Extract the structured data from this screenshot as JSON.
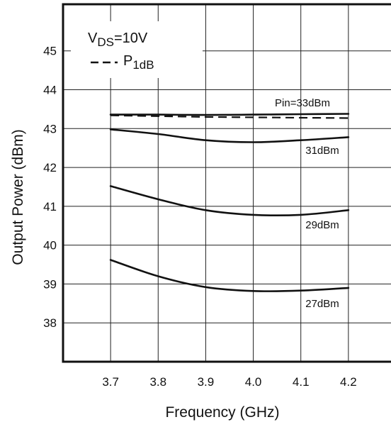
{
  "chart_data": {
    "type": "line",
    "xlabel": "Frequency (GHz)",
    "ylabel": "Output Power (dBm)",
    "xlim": [
      3.6,
      4.3
    ],
    "ylim": [
      37.0,
      46.2
    ],
    "x_ticks": [
      "3.7",
      "3.8",
      "3.9",
      "4.0",
      "4.1",
      "4.2"
    ],
    "y_ticks": [
      "38",
      "39",
      "40",
      "41",
      "42",
      "43",
      "44",
      "45"
    ],
    "grid": true,
    "legend": {
      "condition_main": "V",
      "condition_sub": "DS",
      "condition_rest": "=10V",
      "entry_main": "P",
      "entry_sub": "1dB"
    },
    "annotations": [
      "Pin=33dBm",
      "31dBm",
      "29dBm",
      "27dBm"
    ],
    "series": [
      {
        "name": "Pin=33dBm",
        "style": "solid",
        "x": [
          3.7,
          3.8,
          3.9,
          4.0,
          4.1,
          4.2
        ],
        "y": [
          43.36,
          43.36,
          43.35,
          43.36,
          43.37,
          43.38
        ]
      },
      {
        "name": "P1dB",
        "style": "dashed",
        "x": [
          3.7,
          3.8,
          3.9,
          4.0,
          4.1,
          4.2
        ],
        "y": [
          43.34,
          43.32,
          43.3,
          43.29,
          43.28,
          43.27
        ]
      },
      {
        "name": "31dBm",
        "style": "solid",
        "x": [
          3.7,
          3.8,
          3.9,
          4.0,
          4.1,
          4.2
        ],
        "y": [
          42.98,
          42.86,
          42.7,
          42.65,
          42.7,
          42.78
        ]
      },
      {
        "name": "29dBm",
        "style": "solid",
        "x": [
          3.7,
          3.8,
          3.9,
          4.0,
          4.1,
          4.2
        ],
        "y": [
          41.52,
          41.18,
          40.9,
          40.78,
          40.78,
          40.9
        ]
      },
      {
        "name": "27dBm",
        "style": "solid",
        "x": [
          3.7,
          3.8,
          3.9,
          4.0,
          4.1,
          4.2
        ],
        "y": [
          39.62,
          39.2,
          38.92,
          38.82,
          38.83,
          38.9
        ]
      }
    ]
  }
}
